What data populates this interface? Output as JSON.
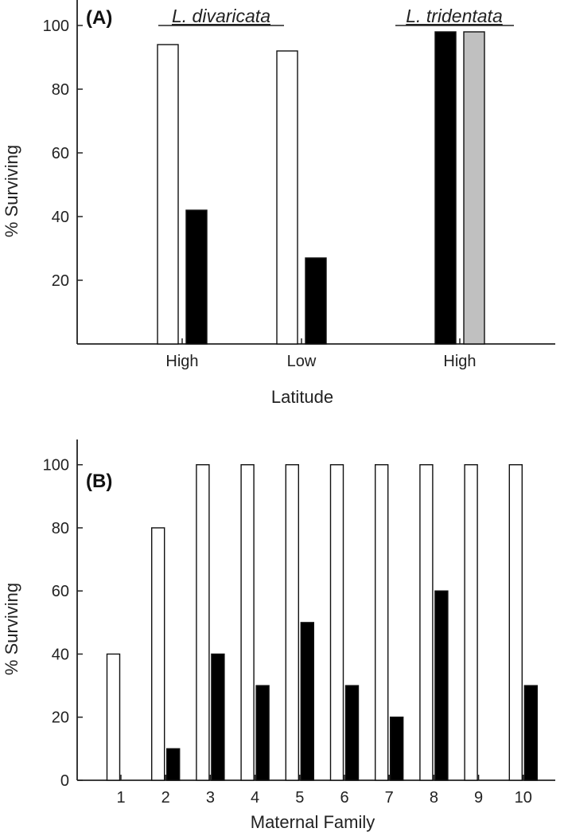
{
  "chart_data": [
    {
      "type": "bar",
      "panel_label": "(A)",
      "xlabel": "Latitude",
      "ylabel": "% Surviving",
      "ylim": [
        0,
        108
      ],
      "yticks": [
        20,
        40,
        60,
        80,
        100
      ],
      "group_headers": [
        {
          "label": "L. divaricata"
        },
        {
          "label": "L. tridentata"
        }
      ],
      "groups": [
        {
          "label": "High",
          "bars": [
            {
              "value": 94,
              "color": "#ffffff"
            },
            {
              "value": 42,
              "color": "#000000"
            }
          ]
        },
        {
          "label": "Low",
          "bars": [
            {
              "value": 92,
              "color": "#ffffff"
            },
            {
              "value": 27,
              "color": "#000000"
            }
          ]
        },
        {
          "label": "High",
          "bars": [
            {
              "value": 98,
              "color": "#000000"
            },
            {
              "value": 98,
              "color": "#c0c0c0"
            }
          ]
        }
      ],
      "grid": false
    },
    {
      "type": "bar",
      "panel_label": "(B)",
      "xlabel": "Maternal Family",
      "ylabel": "% Surviving",
      "ylim": [
        0,
        108
      ],
      "yticks": [
        0,
        20,
        40,
        60,
        80,
        100
      ],
      "categories": [
        "1",
        "2",
        "3",
        "4",
        "5",
        "6",
        "7",
        "8",
        "9",
        "10"
      ],
      "series": [
        {
          "color": "#ffffff",
          "values": [
            40,
            80,
            100,
            100,
            100,
            100,
            100,
            100,
            100,
            100
          ]
        },
        {
          "color": "#000000",
          "values": [
            0,
            10,
            40,
            30,
            50,
            30,
            20,
            60,
            0,
            30
          ]
        }
      ],
      "grid": false
    }
  ]
}
